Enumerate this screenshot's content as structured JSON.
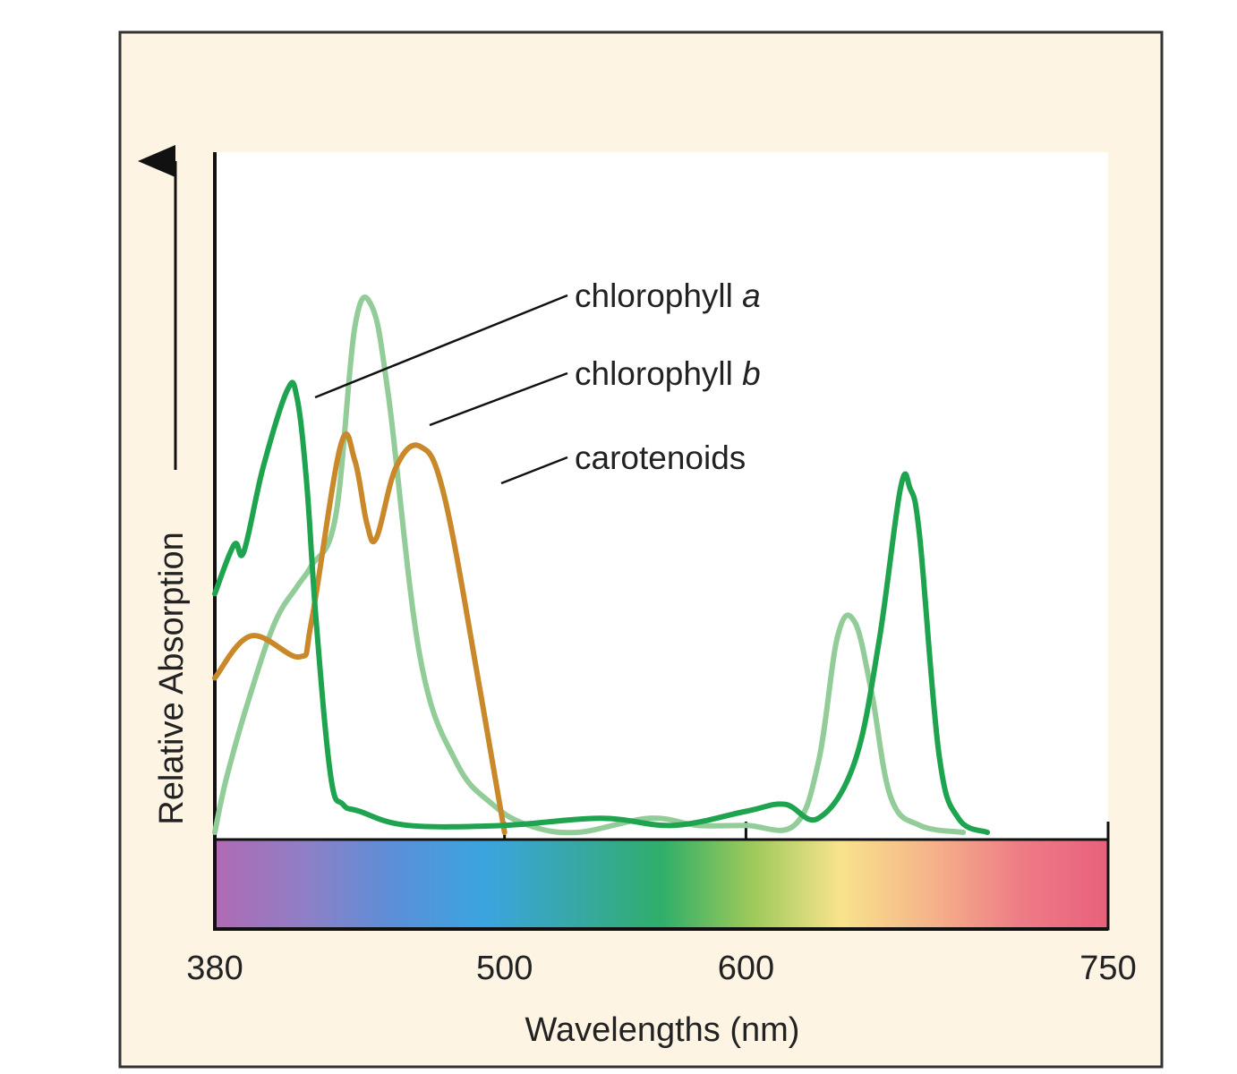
{
  "chart_data": {
    "type": "line",
    "title": "",
    "xlabel": "Wavelengths (nm)",
    "ylabel": "Relative Absorption",
    "xlim": [
      380,
      750
    ],
    "x_ticks": [
      380,
      500,
      600,
      750
    ],
    "y_ticks": [],
    "grid": false,
    "legend_placement": "leader lines to curves, upper center",
    "colors": {
      "background": "#fdf4e3",
      "plot_area": "#ffffff",
      "chlorophyll_a": "#1ea34f",
      "chlorophyll_b": "#92cc98",
      "carotenoids": "#c9892a",
      "spectrum": [
        "#b06ab3",
        "#8f7fc6",
        "#5b8fd8",
        "#3ba4e0",
        "#37a8a8",
        "#2fae6a",
        "#9cc95a",
        "#f8e38c",
        "#f6b48a",
        "#ee7d86",
        "#e8607c"
      ]
    },
    "series": [
      {
        "name": "chlorophyll a",
        "label_prefix": "chlorophyll ",
        "label_italic": "a",
        "color": "#1ea34f",
        "points": [
          [
            380,
            0.34
          ],
          [
            388,
            0.41
          ],
          [
            392,
            0.4
          ],
          [
            400,
            0.52
          ],
          [
            410,
            0.63
          ],
          [
            414,
            0.62
          ],
          [
            418,
            0.5
          ],
          [
            422,
            0.3
          ],
          [
            428,
            0.08
          ],
          [
            433,
            0.04
          ],
          [
            440,
            0.03
          ],
          [
            460,
            0.01
          ],
          [
            500,
            0.01
          ],
          [
            540,
            0.02
          ],
          [
            570,
            0.01
          ],
          [
            600,
            0.03
          ],
          [
            616,
            0.04
          ],
          [
            630,
            0.02
          ],
          [
            645,
            0.1
          ],
          [
            655,
            0.27
          ],
          [
            664,
            0.49
          ],
          [
            668,
            0.49
          ],
          [
            672,
            0.42
          ],
          [
            680,
            0.11
          ],
          [
            688,
            0.02
          ],
          [
            700,
            0.0
          ]
        ]
      },
      {
        "name": "chlorophyll b",
        "label_prefix": "chlorophyll ",
        "label_italic": "b",
        "color": "#92cc98",
        "points": [
          [
            380,
            0.0
          ],
          [
            385,
            0.08
          ],
          [
            395,
            0.2
          ],
          [
            405,
            0.3
          ],
          [
            414,
            0.35
          ],
          [
            420,
            0.38
          ],
          [
            430,
            0.45
          ],
          [
            438,
            0.72
          ],
          [
            445,
            0.75
          ],
          [
            452,
            0.62
          ],
          [
            465,
            0.25
          ],
          [
            480,
            0.1
          ],
          [
            495,
            0.04
          ],
          [
            510,
            0.01
          ],
          [
            530,
            0.0
          ],
          [
            560,
            0.02
          ],
          [
            580,
            0.01
          ],
          [
            600,
            0.01
          ],
          [
            620,
            0.01
          ],
          [
            630,
            0.1
          ],
          [
            638,
            0.28
          ],
          [
            645,
            0.3
          ],
          [
            652,
            0.2
          ],
          [
            660,
            0.05
          ],
          [
            672,
            0.01
          ],
          [
            690,
            0.0
          ]
        ]
      },
      {
        "name": "carotenoids",
        "label_prefix": "carotenoids",
        "label_italic": "",
        "color": "#c9892a",
        "points": [
          [
            380,
            0.22
          ],
          [
            395,
            0.28
          ],
          [
            415,
            0.25
          ],
          [
            420,
            0.3
          ],
          [
            432,
            0.55
          ],
          [
            438,
            0.53
          ],
          [
            443,
            0.44
          ],
          [
            447,
            0.42
          ],
          [
            455,
            0.52
          ],
          [
            465,
            0.55
          ],
          [
            475,
            0.48
          ],
          [
            490,
            0.2
          ],
          [
            500,
            0.0
          ]
        ]
      }
    ]
  }
}
